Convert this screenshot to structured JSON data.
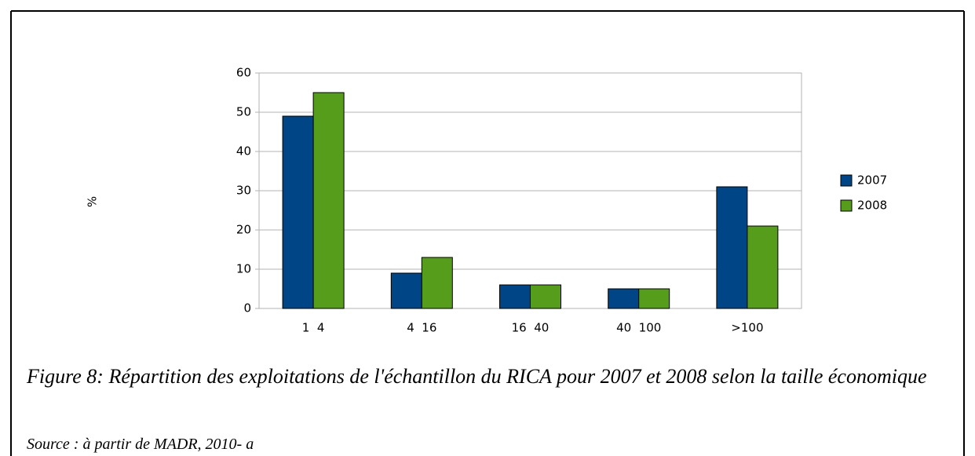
{
  "chart_data": {
    "type": "bar",
    "ylabel": "%",
    "categories": [
      "1  4",
      "4  16",
      "16  40",
      "40  100",
      ">100"
    ],
    "series": [
      {
        "name": "2007",
        "color": "#004586",
        "values": [
          49,
          9,
          6,
          5,
          31
        ]
      },
      {
        "name": "2008",
        "color": "#579d1c",
        "values": [
          55,
          13,
          6,
          5,
          21
        ]
      }
    ],
    "ylim": [
      0,
      60
    ],
    "yticks": [
      0,
      10,
      20,
      30,
      40,
      50,
      60
    ],
    "grid": true,
    "legend": "right",
    "caption": "Figure 8: Répartition des exploitations de l'échantillon du RICA pour 2007 et 2008 selon la taille économique",
    "source": "Source : à partir de MADR, 2010- a"
  }
}
